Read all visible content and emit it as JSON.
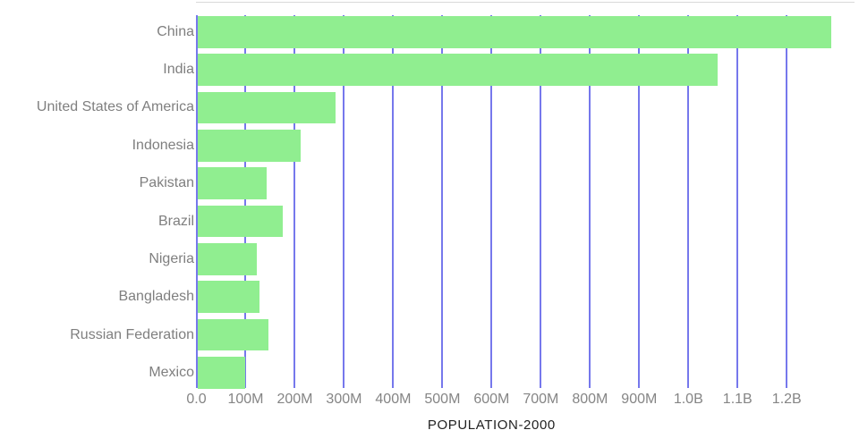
{
  "chart_data": {
    "type": "bar",
    "orientation": "horizontal",
    "title": "",
    "xlabel": "POPULATION-2000",
    "ylabel": "",
    "categories": [
      "China",
      "India",
      "United States of America",
      "Indonesia",
      "Pakistan",
      "Brazil",
      "Nigeria",
      "Bangladesh",
      "Russian Federation",
      "Mexico"
    ],
    "values": [
      1290000000,
      1060000000,
      282000000,
      212000000,
      142000000,
      176000000,
      123000000,
      128000000,
      147000000,
      100000000
    ],
    "x_tick_labels": [
      "0.0",
      "100M",
      "200M",
      "300M",
      "400M",
      "500M",
      "600M",
      "700M",
      "800M",
      "900M",
      "1.0B",
      "1.1B",
      "1.2B"
    ],
    "x_tick_values": [
      0,
      100000000,
      200000000,
      300000000,
      400000000,
      500000000,
      600000000,
      700000000,
      800000000,
      900000000,
      1000000000,
      1100000000,
      1200000000
    ],
    "xlim": [
      0,
      1337000000
    ],
    "grid": "vertical",
    "legend": false,
    "colors": {
      "bar_fill": "#90ee90",
      "gridline": "#7678ec",
      "axis_line": "#7678ec",
      "tick_label": "#858585",
      "category_label": "#7f7f7f",
      "axis_title": "#222222",
      "plot_top_border": "#d9d9d9",
      "background": "#ffffff"
    }
  }
}
